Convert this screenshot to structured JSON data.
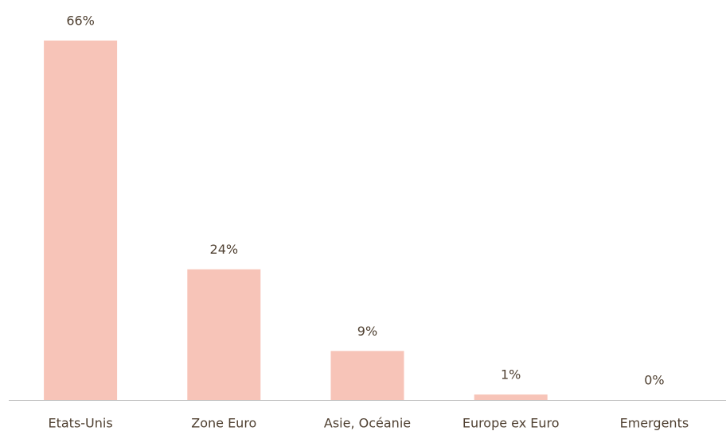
{
  "chart_data": {
    "type": "bar",
    "categories": [
      "Etats-Unis",
      "Zone Euro",
      "Asie, Océanie",
      "Europe ex Euro",
      "Emergents"
    ],
    "values": [
      66,
      24,
      9,
      1,
      0
    ],
    "value_labels": [
      "66%",
      "24%",
      "9%",
      "1%",
      "0%"
    ],
    "color": "#f7c4b8"
  }
}
